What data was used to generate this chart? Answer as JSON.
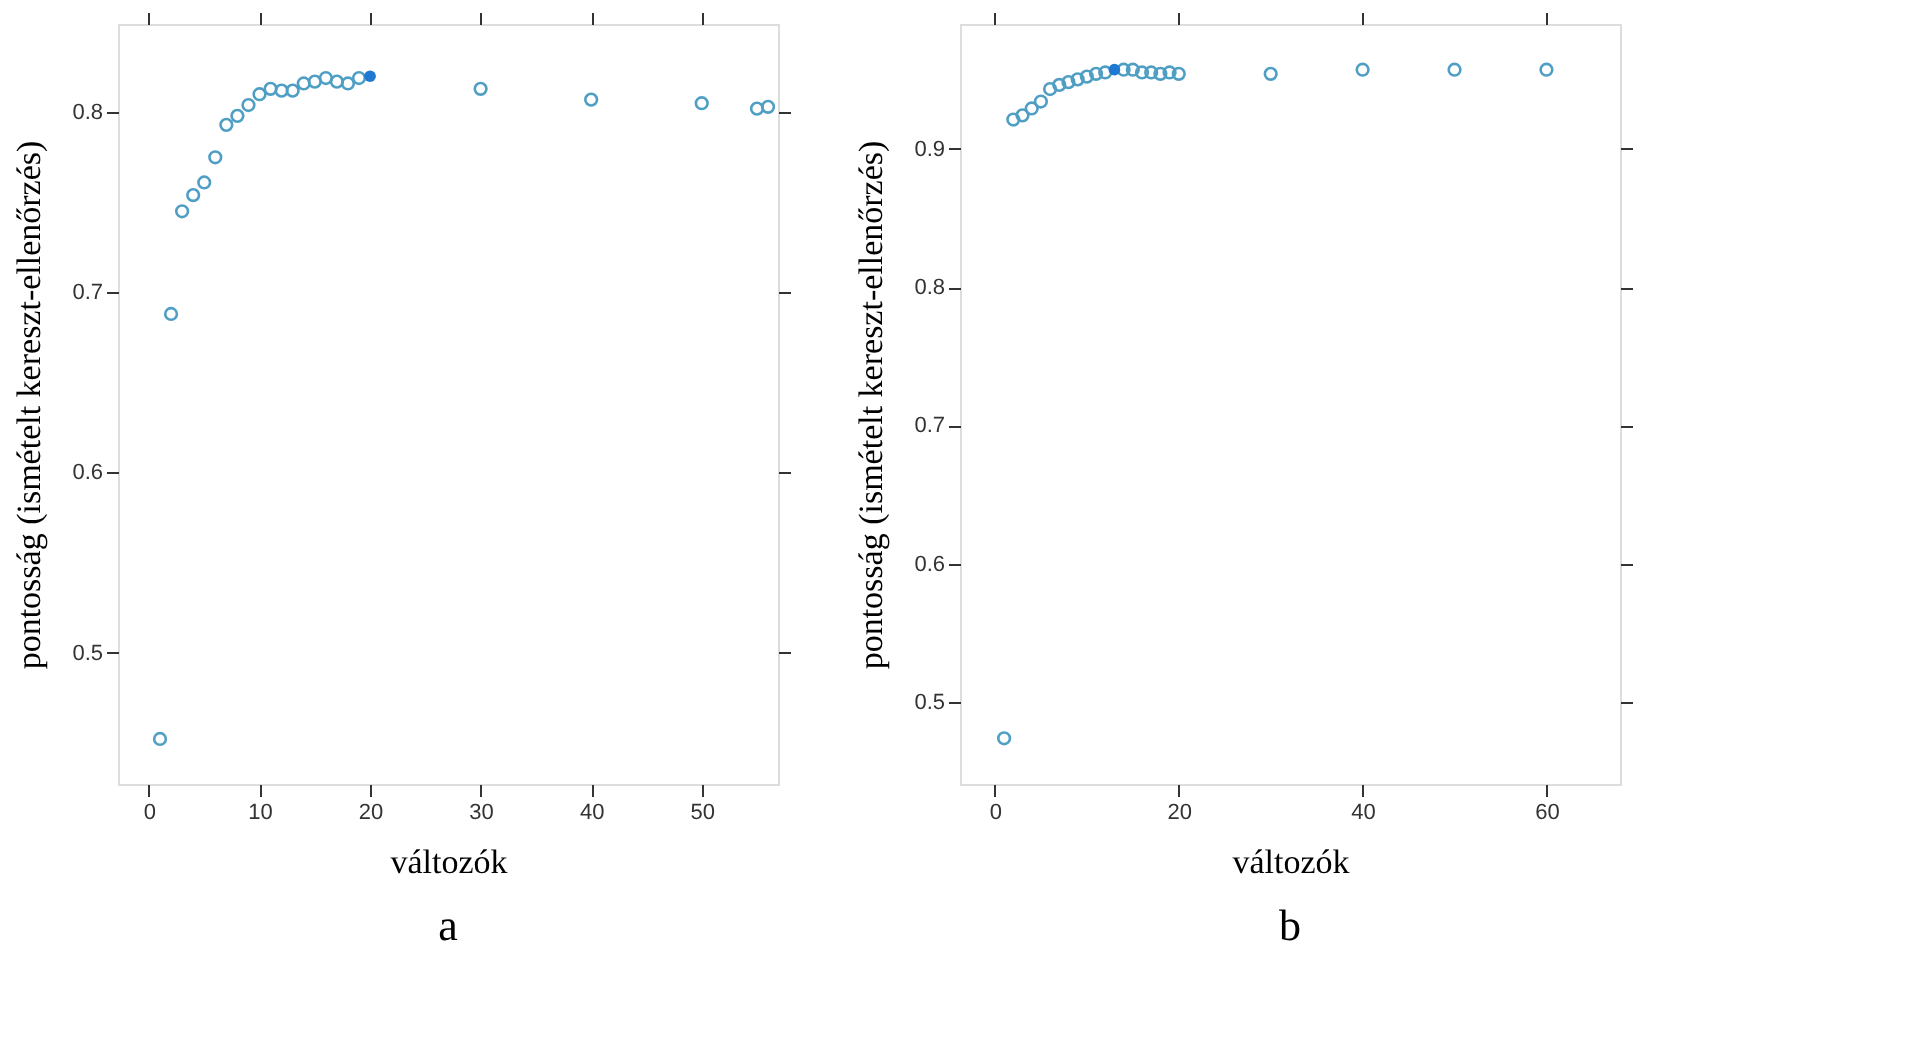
{
  "chart_data": [
    {
      "type": "scatter",
      "title": "a",
      "xlabel": "változók",
      "ylabel": "pontosság (ismételt kereszt-ellenőrzés)",
      "marker": "circle",
      "grid": false,
      "xlim": [
        -2.8,
        56.9
      ],
      "xticks": [
        0,
        10,
        20,
        30,
        40,
        50
      ],
      "ylim": [
        0.427,
        0.849
      ],
      "yticks": [
        0.5,
        0.6,
        0.7,
        0.8
      ],
      "series": [
        {
          "color": "#4f9ec4",
          "x": [
            1,
            2,
            3,
            4,
            5,
            6,
            7,
            8,
            9,
            10,
            11,
            12,
            13,
            14,
            15,
            16,
            17,
            18,
            19,
            30,
            40,
            50,
            55,
            56
          ],
          "values": [
            0.452,
            0.688,
            0.745,
            0.754,
            0.761,
            0.775,
            0.793,
            0.798,
            0.804,
            0.81,
            0.813,
            0.812,
            0.812,
            0.816,
            0.817,
            0.819,
            0.817,
            0.816,
            0.819,
            0.813,
            0.807,
            0.805,
            0.802,
            0.803
          ]
        },
        {
          "color": "#1f78d1",
          "x": [
            20
          ],
          "values": [
            0.82
          ]
        }
      ]
    },
    {
      "type": "scatter",
      "title": "b",
      "xlabel": "változók",
      "ylabel": "pontosság (ismételt kereszt-ellenőrzés)",
      "marker": "circle",
      "grid": false,
      "xlim": [
        -3.8,
        68
      ],
      "xticks": [
        0,
        20,
        40,
        60
      ],
      "ylim": [
        0.441,
        0.99
      ],
      "yticks": [
        0.5,
        0.6,
        0.7,
        0.8,
        0.9
      ],
      "series": [
        {
          "color": "#4f9ec4",
          "x": [
            1,
            2,
            3,
            4,
            5,
            6,
            7,
            8,
            9,
            10,
            11,
            12,
            14,
            15,
            16,
            17,
            18,
            19,
            20,
            30,
            40,
            50,
            60
          ],
          "values": [
            0.474,
            0.921,
            0.924,
            0.929,
            0.934,
            0.943,
            0.946,
            0.948,
            0.95,
            0.952,
            0.954,
            0.955,
            0.957,
            0.957,
            0.955,
            0.955,
            0.954,
            0.955,
            0.954,
            0.954,
            0.957,
            0.957,
            0.957
          ]
        },
        {
          "color": "#1f78d1",
          "x": [
            13
          ],
          "values": [
            0.957
          ]
        }
      ]
    }
  ]
}
